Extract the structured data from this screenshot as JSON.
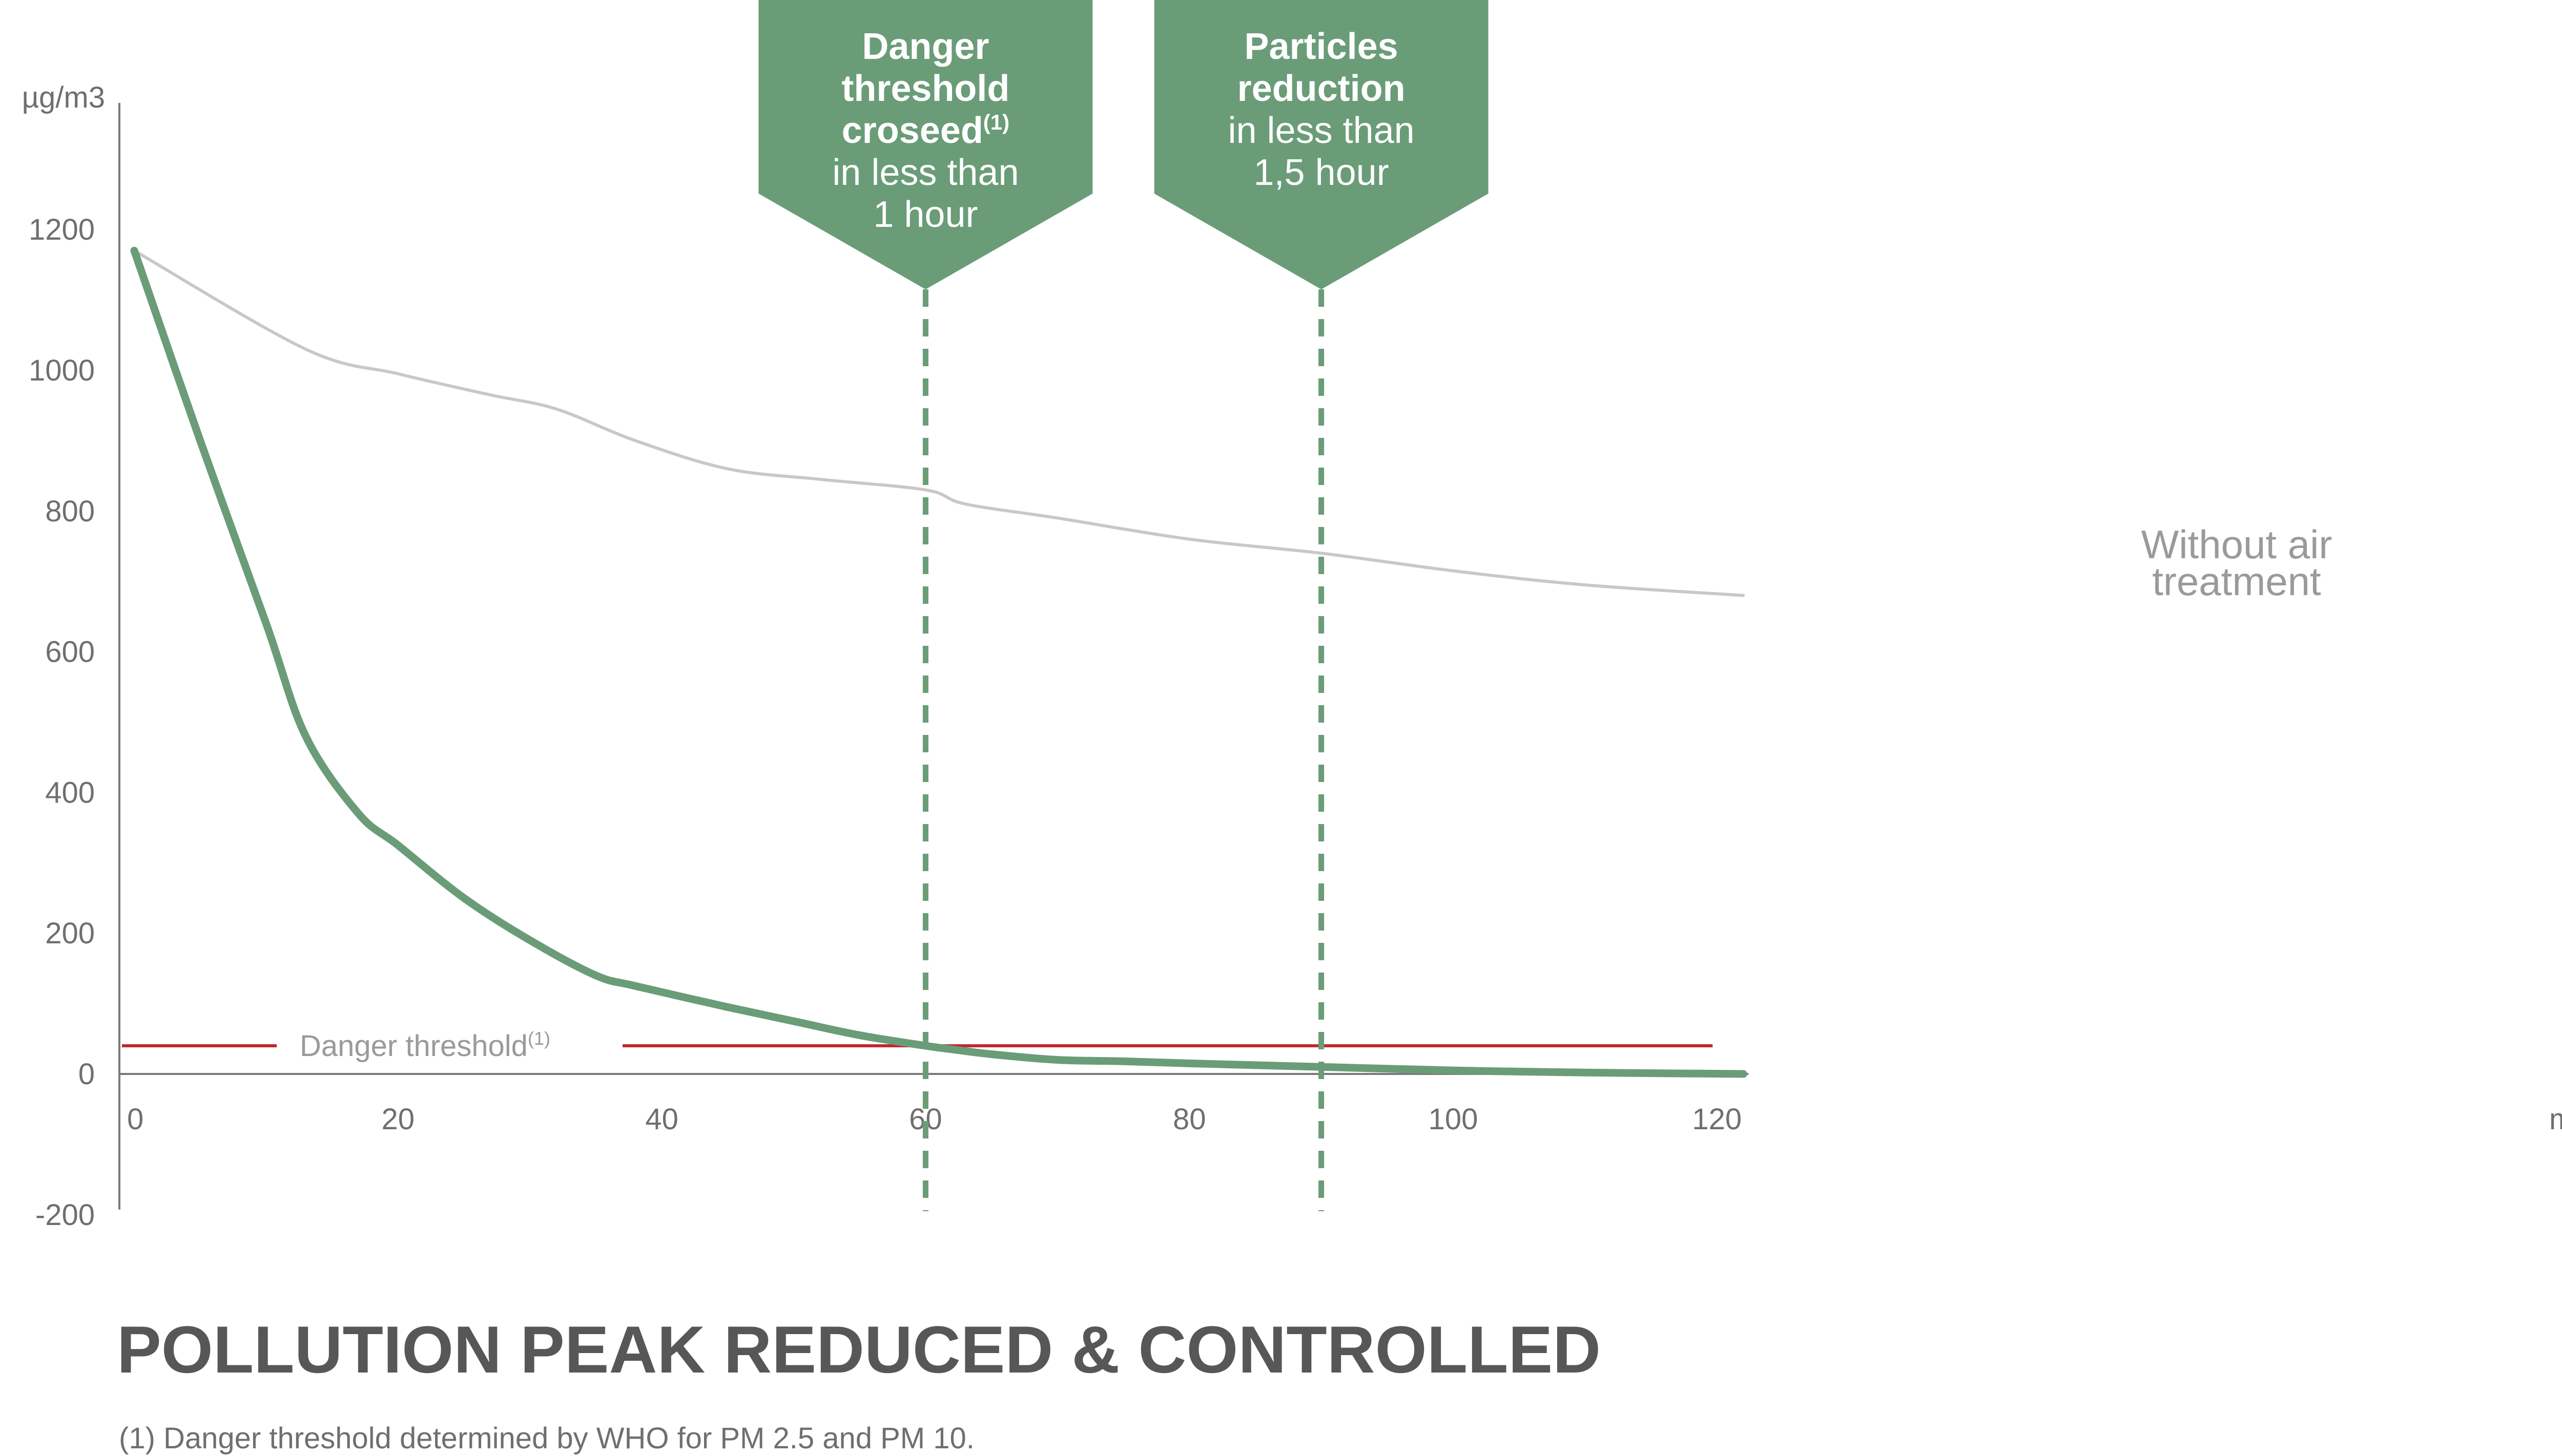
{
  "title": "POLLUTION PEAK REDUCED & CONTROLLED",
  "footnote": "(1) Danger threshold determined by WHO for PM 2.5 and PM 10.",
  "chart_data": {
    "type": "line",
    "title": "POLLUTION PEAK REDUCED & CONTROLLED",
    "ylabel": "µg/m3",
    "xlabel": "minutes",
    "xlim": [
      0,
      122
    ],
    "ylim": [
      -200,
      1380
    ],
    "x_ticks": [
      0,
      20,
      40,
      60,
      80,
      100,
      120
    ],
    "y_ticks": [
      -200,
      0,
      200,
      400,
      600,
      800,
      1000,
      1200
    ],
    "grid": false,
    "series": [
      {
        "name": "",
        "color": "#6a9c78",
        "x": [
          0,
          5,
          10,
          13,
          17,
          20,
          25,
          30,
          35,
          38,
          45,
          50,
          55,
          60,
          62,
          65,
          70,
          75,
          80,
          90,
          100,
          110,
          122
        ],
        "y": [
          1170,
          900,
          640,
          480,
          370,
          325,
          250,
          190,
          140,
          125,
          95,
          75,
          55,
          40,
          35,
          28,
          20,
          18,
          15,
          10,
          5,
          2,
          0
        ]
      },
      {
        "name": "Without air treatment",
        "color": "#c8c8c8",
        "x": [
          0,
          13,
          20,
          27,
          32,
          38,
          45,
          52,
          60,
          63,
          70,
          80,
          90,
          100,
          110,
          122
        ],
        "y": [
          1170,
          1030,
          995,
          965,
          945,
          900,
          860,
          845,
          830,
          810,
          790,
          760,
          740,
          715,
          695,
          680
        ]
      }
    ],
    "threshold": {
      "label": "Danger threshold",
      "footnote_mark": "(1)",
      "value": 40,
      "color": "#c0282e"
    },
    "series_label": {
      "line1": "Without air",
      "line2": "treatment"
    },
    "markers": [
      {
        "x": 60,
        "color": "#6a9c78",
        "lines": [
          {
            "text": "Danger",
            "bold": true
          },
          {
            "text": "threshold",
            "bold": true
          },
          {
            "text": "croseed",
            "bold": true,
            "sup": "(1)"
          },
          {
            "text": "in less than",
            "bold": false
          },
          {
            "text": "1 hour",
            "bold": false
          }
        ]
      },
      {
        "x": 90,
        "color": "#6a9c78",
        "lines": [
          {
            "text": "Particles",
            "bold": true
          },
          {
            "text": "reduction",
            "bold": true
          },
          {
            "text": "in less than",
            "bold": false
          },
          {
            "text": "1,5 hour",
            "bold": false
          }
        ]
      }
    ]
  }
}
